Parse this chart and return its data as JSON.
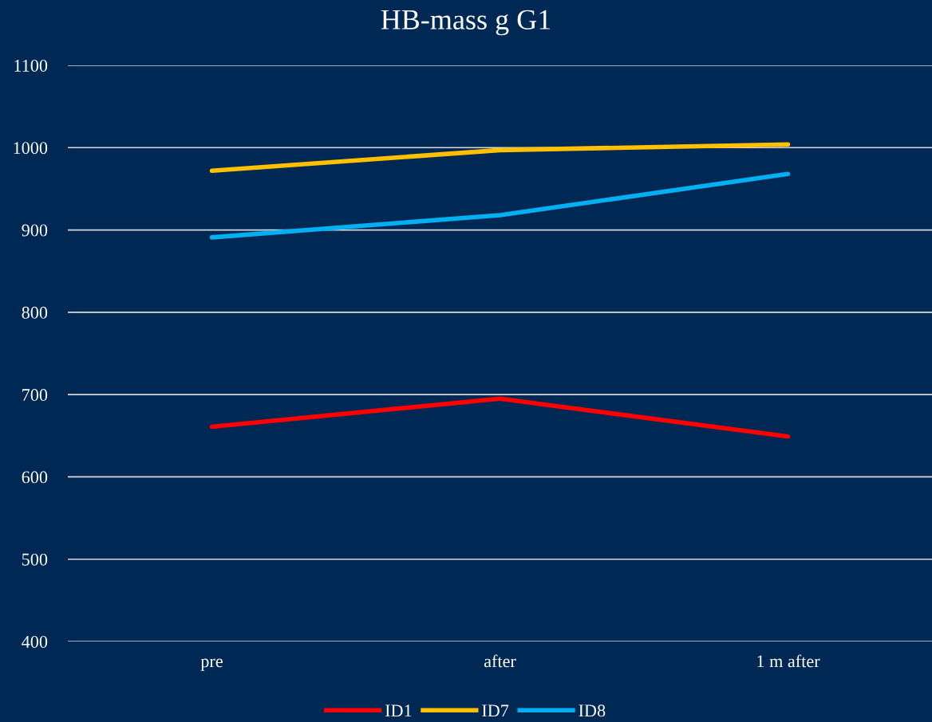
{
  "chart_data": {
    "type": "line",
    "title": "HB-mass g G1",
    "categories": [
      "pre",
      "after",
      "1 m after"
    ],
    "series": [
      {
        "name": "ID1",
        "color": "#ff0000",
        "values": [
          661,
          695,
          649
        ]
      },
      {
        "name": "ID7",
        "color": "#ffc000",
        "values": [
          972,
          997,
          1004
        ]
      },
      {
        "name": "ID8",
        "color": "#00b0f0",
        "values": [
          891,
          918,
          968
        ]
      }
    ],
    "ylim": [
      400,
      1100
    ],
    "yticks": [
      400,
      500,
      600,
      700,
      800,
      900,
      1000,
      1100
    ],
    "grid": "y",
    "legend": "bottom",
    "marker": "none",
    "line_style": "solid"
  }
}
